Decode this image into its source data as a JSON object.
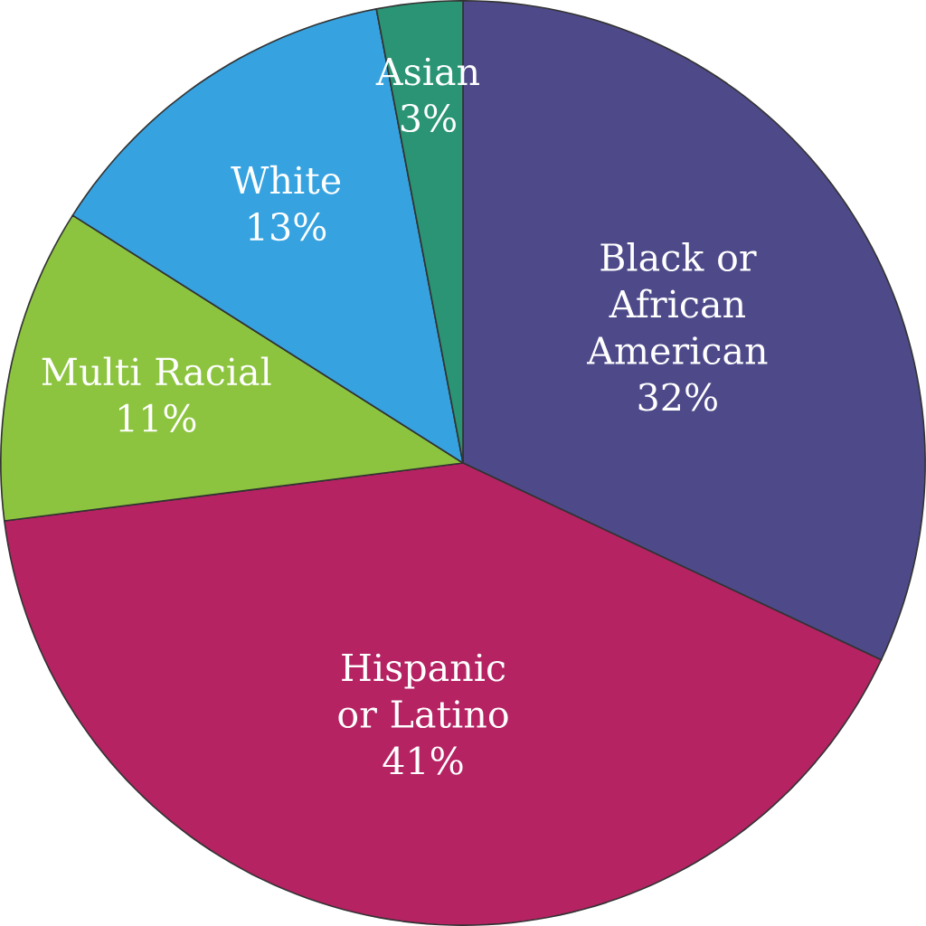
{
  "chart_data": {
    "type": "pie",
    "categories": [
      "Black or African American",
      "Hispanic or Latino",
      "Multi Racial",
      "White",
      "Asian"
    ],
    "values": [
      32,
      41,
      11,
      13,
      3
    ],
    "value_labels": [
      "32%",
      "41%",
      "11%",
      "13%",
      "3%"
    ],
    "colors": [
      "#4e4a8a",
      "#b52363",
      "#8dc43f",
      "#36a3e0",
      "#2a9474"
    ]
  }
}
